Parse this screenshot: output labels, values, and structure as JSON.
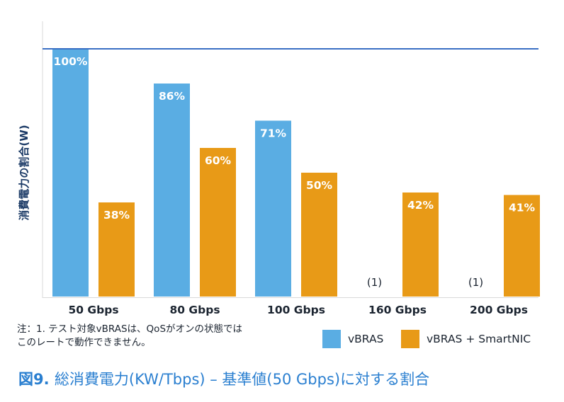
{
  "chart_data": {
    "type": "bar",
    "ylabel": "消費電力の割合(W)",
    "ylim": [
      0,
      100
    ],
    "categories": [
      "50 Gbps",
      "80 Gbps",
      "100 Gbps",
      "160 Gbps",
      "200 Gbps"
    ],
    "series": [
      {
        "name": "vBRAS",
        "color": "#5aade3",
        "values": [
          100,
          86,
          71,
          null,
          null
        ],
        "labels": [
          "100%",
          "86%",
          "71%",
          "(1)",
          "(1)"
        ]
      },
      {
        "name": "vBRAS + SmartNIC",
        "color": "#e89a17",
        "values": [
          38,
          60,
          50,
          42,
          41
        ],
        "labels": [
          "38%",
          "60%",
          "50%",
          "42%",
          "41%"
        ]
      }
    ],
    "reference_line": {
      "value": 100,
      "color": "#3a6fc4"
    },
    "grid": false
  },
  "note": {
    "line1": "注：1. テスト対象vBRASは、QoSがオンの状態では",
    "line2": "このレートで動作できません。"
  },
  "legend": {
    "vbras": "vBRAS",
    "smartnic": "vBRAS + SmartNIC"
  },
  "caption": {
    "figure": "図9.",
    "text": "総消費電力(KW/Tbps) – 基準値(50 Gbps)に対する割合"
  },
  "colors": {
    "axis_label": "#1b3a66",
    "caption": "#2a7fd0",
    "text": "#1b2430"
  }
}
